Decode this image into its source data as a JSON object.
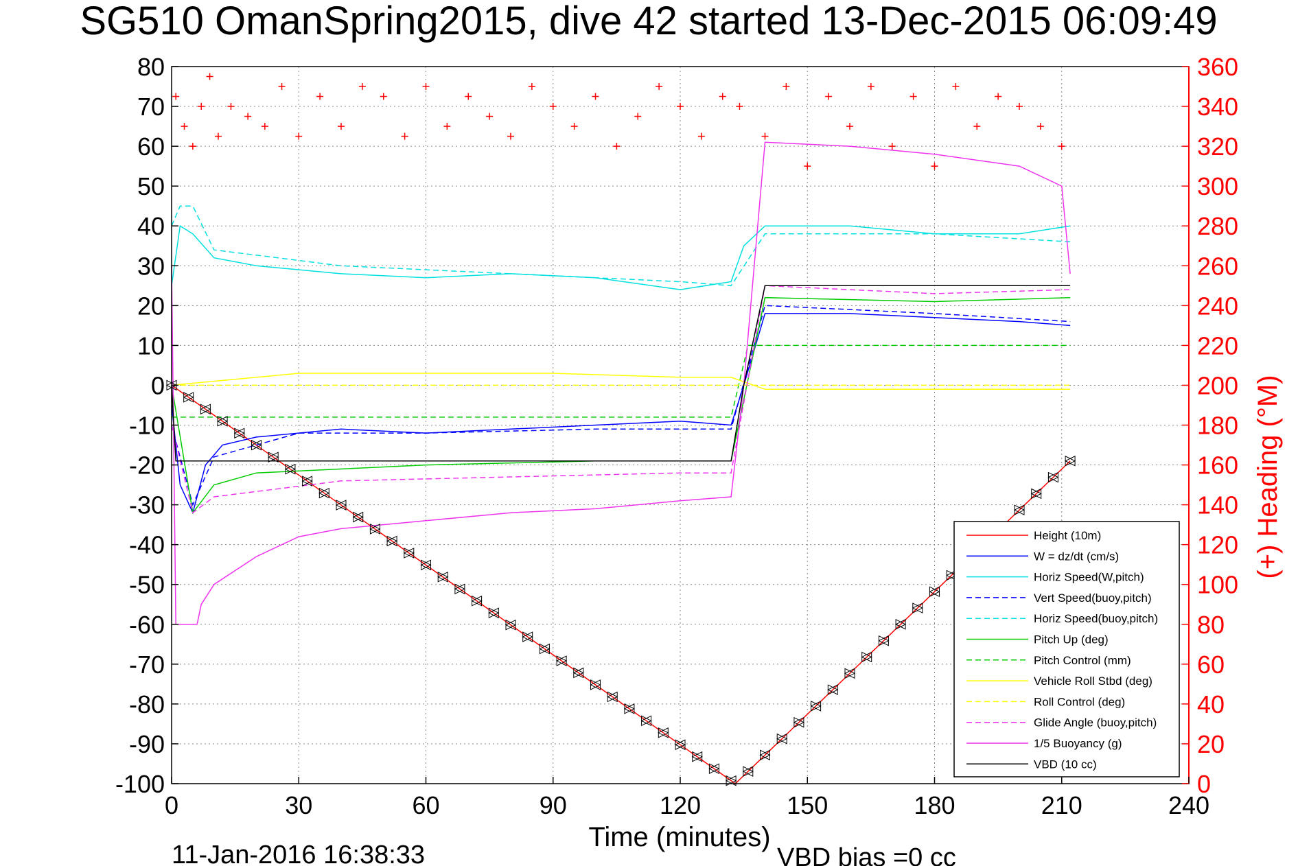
{
  "chart_data": {
    "type": "line",
    "title": "SG510 OmanSpring2015, dive 42 started 13-Dec-2015 06:09:49",
    "xlabel": "Time (minutes)",
    "ylabel": "",
    "ylabel_right": "(+) Heading (°M)",
    "xlim": [
      0,
      240
    ],
    "ylim": [
      -100,
      80
    ],
    "ylim_right": [
      0,
      360
    ],
    "xticks": [
      "0",
      "30",
      "60",
      "90",
      "120",
      "150",
      "180",
      "210",
      "240"
    ],
    "yticks": [
      "80",
      "70",
      "60",
      "50",
      "40",
      "30",
      "20",
      "10",
      "0",
      "-10",
      "-20",
      "-30",
      "-40",
      "-50",
      "-60",
      "-70",
      "-80",
      "-90",
      "-100"
    ],
    "yticks_right": [
      "360",
      "340",
      "320",
      "300",
      "280",
      "260",
      "240",
      "220",
      "200",
      "180",
      "160",
      "140",
      "120",
      "100",
      "80",
      "60",
      "40",
      "20",
      "0"
    ],
    "grid": true,
    "legend_position": "bottom-right",
    "series": [
      {
        "name": "Height (10m)",
        "color": "#ff0000",
        "style": "solid",
        "x": [
          0,
          133,
          212
        ],
        "y": [
          0,
          -100,
          -19
        ]
      },
      {
        "name": "W = dz/dt (cm/s)",
        "color": "#0000ff",
        "style": "solid",
        "x": [
          0,
          2,
          5,
          8,
          12,
          20,
          40,
          60,
          80,
          100,
          120,
          132,
          135,
          140,
          160,
          180,
          200,
          212
        ],
        "y": [
          -5,
          -25,
          -32,
          -20,
          -15,
          -13,
          -11,
          -12,
          -11,
          -10,
          -9,
          -10,
          0,
          18,
          18,
          17,
          16,
          15
        ]
      },
      {
        "name": "Horiz Speed(W,pitch)",
        "color": "#00e0e0",
        "style": "solid",
        "x": [
          0,
          2,
          5,
          10,
          20,
          40,
          60,
          80,
          100,
          120,
          132,
          135,
          140,
          160,
          180,
          200,
          212
        ],
        "y": [
          25,
          40,
          38,
          32,
          30,
          28,
          27,
          28,
          27,
          24,
          26,
          35,
          40,
          40,
          38,
          38,
          40
        ]
      },
      {
        "name": "Vert Speed(buoy,pitch)",
        "color": "#0000ff",
        "style": "dashed",
        "x": [
          0,
          5,
          10,
          30,
          60,
          100,
          132,
          140,
          180,
          212
        ],
        "y": [
          -10,
          -30,
          -18,
          -12,
          -12,
          -11,
          -11,
          20,
          18,
          16
        ]
      },
      {
        "name": "Horiz Speed(buoy,pitch)",
        "color": "#00e0e0",
        "style": "dashed",
        "x": [
          0,
          2,
          5,
          10,
          40,
          80,
          120,
          132,
          140,
          180,
          212
        ],
        "y": [
          40,
          45,
          45,
          34,
          30,
          28,
          26,
          25,
          38,
          38,
          36
        ]
      },
      {
        "name": "Pitch Up (deg)",
        "color": "#00cc00",
        "style": "solid",
        "x": [
          0,
          5,
          10,
          20,
          60,
          100,
          132,
          140,
          180,
          212
        ],
        "y": [
          0,
          -32,
          -25,
          -22,
          -20,
          -19,
          -19,
          22,
          21,
          22
        ]
      },
      {
        "name": "Pitch Control (mm)",
        "color": "#00cc00",
        "style": "dashed",
        "x": [
          0,
          5,
          10,
          132,
          136,
          212
        ],
        "y": [
          -8,
          -8,
          -8,
          -8,
          10,
          10
        ]
      },
      {
        "name": "Vehicle Roll Stbd (deg)",
        "color": "#ffff00",
        "style": "solid",
        "x": [
          0,
          30,
          60,
          90,
          120,
          132,
          140,
          170,
          212
        ],
        "y": [
          0,
          3,
          3,
          3,
          2,
          2,
          -1,
          -1,
          -1
        ]
      },
      {
        "name": "Roll Control (deg)",
        "color": "#ffff00",
        "style": "dashed",
        "x": [
          0,
          132,
          136,
          212
        ],
        "y": [
          0,
          0,
          0,
          0
        ]
      },
      {
        "name": "Glide Angle (buoy,pitch)",
        "color": "#ee33ee",
        "style": "dashed",
        "x": [
          0,
          5,
          10,
          40,
          80,
          120,
          132,
          140,
          180,
          212
        ],
        "y": [
          -10,
          -32,
          -28,
          -24,
          -23,
          -22,
          -22,
          25,
          23,
          24
        ]
      },
      {
        "name": "1/5 Buoyancy (g)",
        "color": "#ee33ee",
        "style": "solid",
        "x": [
          0,
          1,
          6,
          7,
          10,
          20,
          30,
          40,
          60,
          80,
          100,
          120,
          132,
          135,
          140,
          160,
          180,
          200,
          210,
          212
        ],
        "y": [
          30,
          -60,
          -60,
          -55,
          -50,
          -43,
          -38,
          -36,
          -34,
          -32,
          -31,
          -29,
          -28,
          0,
          61,
          60,
          58,
          55,
          50,
          28
        ]
      },
      {
        "name": "VBD (10 cc)",
        "color": "#000000",
        "style": "solid",
        "x": [
          0,
          1,
          132,
          135,
          140,
          212
        ],
        "y": [
          0,
          -19,
          -19,
          0,
          25,
          25
        ]
      }
    ],
    "heading_series": {
      "name": "(+) Heading",
      "color": "#ff0000",
      "marker": "+",
      "x": [
        1,
        3,
        5,
        7,
        9,
        11,
        14,
        18,
        22,
        26,
        30,
        35,
        40,
        45,
        50,
        55,
        60,
        65,
        70,
        75,
        80,
        85,
        90,
        95,
        100,
        105,
        110,
        115,
        120,
        125,
        130,
        134,
        140,
        145,
        150,
        155,
        160,
        165,
        170,
        175,
        180,
        185,
        190,
        195,
        200,
        205,
        210
      ],
      "y": [
        345,
        330,
        320,
        340,
        355,
        325,
        340,
        335,
        330,
        350,
        325,
        345,
        330,
        350,
        345,
        325,
        350,
        330,
        345,
        335,
        325,
        350,
        340,
        330,
        345,
        320,
        335,
        350,
        340,
        325,
        345,
        340,
        325,
        350,
        310,
        345,
        330,
        350,
        320,
        345,
        310,
        350,
        330,
        345,
        340,
        330,
        320
      ]
    },
    "annotations": [
      "11-Jan-2016 16:38:33",
      "VBD bias =0 cc"
    ]
  }
}
